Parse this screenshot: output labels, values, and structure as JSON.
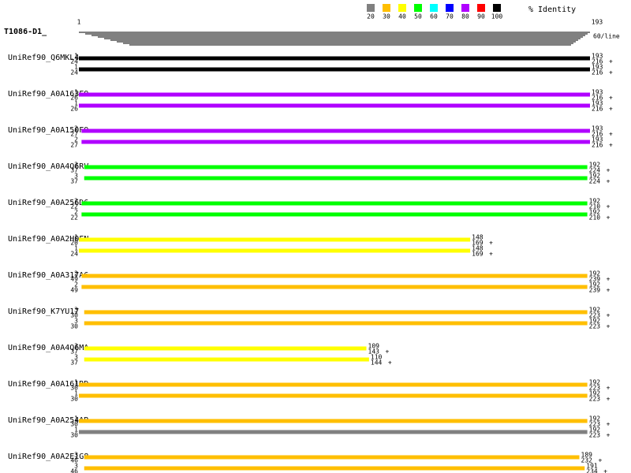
{
  "legend": {
    "title": "% Identity",
    "items": [
      {
        "label": "20",
        "color": "#808080"
      },
      {
        "label": "30",
        "color": "#ffbf00"
      },
      {
        "label": "40",
        "color": "#ffff00"
      },
      {
        "label": "50",
        "color": "#00ff00"
      },
      {
        "label": "60",
        "color": "#00ffff"
      },
      {
        "label": "70",
        "color": "#0000ff"
      },
      {
        "label": "80",
        "color": "#b000ff"
      },
      {
        "label": "90",
        "color": "#ff0000"
      },
      {
        "label": "100",
        "color": "#000000"
      }
    ]
  },
  "query": {
    "name": "T1086-D1_",
    "start": 1,
    "end": 193,
    "note": "60/line"
  },
  "hits": [
    {
      "name": "UniRef90_Q6MKL4",
      "bars": [
        {
          "qstart": 1,
          "hstart": 24,
          "qend": 193,
          "hend": 216,
          "strand": "+",
          "color": "#000000"
        },
        {
          "qstart": 1,
          "hstart": 24,
          "qend": 193,
          "hend": 216,
          "strand": "+",
          "color": "#000000"
        }
      ]
    },
    {
      "name": "UniRef90_A0A163F9",
      "bars": [
        {
          "qstart": 1,
          "hstart": 26,
          "qend": 193,
          "hend": 216,
          "strand": "+",
          "color": "#b000ff"
        },
        {
          "qstart": 1,
          "hstart": 26,
          "qend": 193,
          "hend": 216,
          "strand": "+",
          "color": "#b000ff"
        }
      ]
    },
    {
      "name": "UniRef90_A0A150F9",
      "bars": [
        {
          "qstart": 2,
          "hstart": 27,
          "qend": 193,
          "hend": 216,
          "strand": "+",
          "color": "#b000ff"
        },
        {
          "qstart": 2,
          "hstart": 27,
          "qend": 193,
          "hend": 216,
          "strand": "+",
          "color": "#b000ff"
        }
      ]
    },
    {
      "name": "UniRef90_A0A4Q6RV",
      "bars": [
        {
          "qstart": 3,
          "hstart": 37,
          "qend": 192,
          "hend": 224,
          "strand": "+",
          "color": "#00ff00"
        },
        {
          "qstart": 3,
          "hstart": 37,
          "qend": 192,
          "hend": 224,
          "strand": "+",
          "color": "#00ff00"
        }
      ]
    },
    {
      "name": "UniRef90_A0A256D6",
      "bars": [
        {
          "qstart": 2,
          "hstart": 22,
          "qend": 192,
          "hend": 210,
          "strand": "+",
          "color": "#00ff00"
        },
        {
          "qstart": 2,
          "hstart": 22,
          "qend": 192,
          "hend": 210,
          "strand": "+",
          "color": "#00ff00"
        }
      ]
    },
    {
      "name": "UniRef90_A0A2H0FN",
      "bars": [
        {
          "qstart": 1,
          "hstart": 20,
          "qend": 148,
          "hend": 169,
          "strand": "+",
          "color": "#ffff00"
        },
        {
          "qstart": 1,
          "hstart": 24,
          "qend": 148,
          "hend": 169,
          "strand": "+",
          "color": "#ffff00"
        }
      ]
    },
    {
      "name": "UniRef90_A0A317A6",
      "bars": [
        {
          "qstart": 2,
          "hstart": 49,
          "qend": 192,
          "hend": 239,
          "strand": "+",
          "color": "#ffbf00"
        },
        {
          "qstart": 2,
          "hstart": 49,
          "qend": 192,
          "hend": 239,
          "strand": "+",
          "color": "#ffbf00"
        }
      ]
    },
    {
      "name": "UniRef90_K7YU17",
      "bars": [
        {
          "qstart": 3,
          "hstart": 30,
          "qend": 192,
          "hend": 223,
          "strand": "+",
          "color": "#ffbf00"
        },
        {
          "qstart": 3,
          "hstart": 30,
          "qend": 192,
          "hend": 223,
          "strand": "+",
          "color": "#ffbf00"
        }
      ]
    },
    {
      "name": "UniRef90_A0A4Q6MA",
      "bars": [
        {
          "qstart": 3,
          "hstart": 37,
          "qend": 109,
          "hend": 143,
          "strand": "+",
          "color": "#ffff00"
        },
        {
          "qstart": 3,
          "hstart": 37,
          "qend": 110,
          "hend": 144,
          "strand": "+",
          "color": "#ffff00"
        }
      ]
    },
    {
      "name": "UniRef90_A0A161RD",
      "bars": [
        {
          "qstart": 1,
          "hstart": 30,
          "qend": 192,
          "hend": 223,
          "strand": "+",
          "color": "#ffbf00"
        },
        {
          "qstart": 1,
          "hstart": 30,
          "qend": 192,
          "hend": 223,
          "strand": "+",
          "color": "#ffbf00"
        }
      ]
    },
    {
      "name": "UniRef90_A0A254AR",
      "bars": [
        {
          "qstart": 1,
          "hstart": 30,
          "qend": 192,
          "hend": 223,
          "strand": "+",
          "color": "#ffbf00"
        },
        {
          "qstart": 1,
          "hstart": 30,
          "qend": 192,
          "hend": 223,
          "strand": "+",
          "color": "#808080"
        }
      ]
    },
    {
      "name": "UniRef90_A0A2E1G8",
      "bars": [
        {
          "qstart": 3,
          "hstart": 46,
          "qend": 189,
          "hend": 232,
          "strand": "+",
          "color": "#ffbf00"
        },
        {
          "qstart": 3,
          "hstart": 46,
          "qend": 191,
          "hend": 234,
          "strand": "+",
          "color": "#ffbf00"
        }
      ]
    }
  ]
}
